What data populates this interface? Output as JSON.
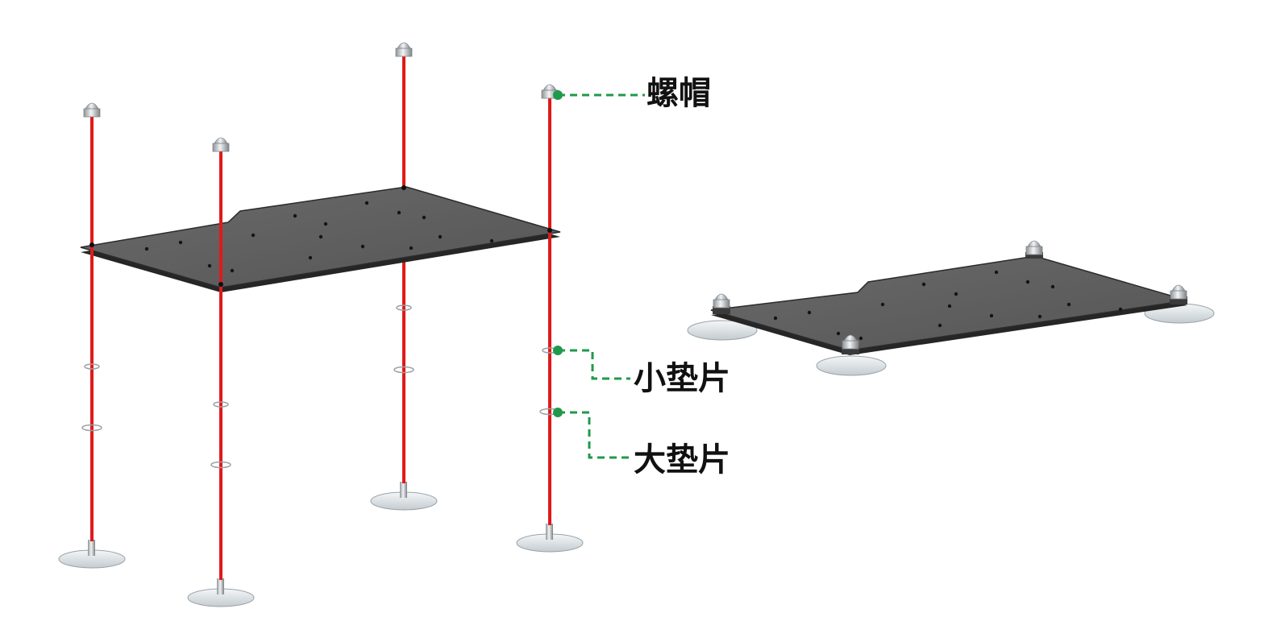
{
  "callouts": {
    "nut": "螺帽",
    "small_washer": "小垫片",
    "large_washer": "大垫片"
  },
  "colors": {
    "rod": "#e01a1a",
    "plate": "#5f5f5f",
    "plate_edge": "#262626",
    "leader": "#1f9a4a",
    "metal": "#c9cdd1",
    "suction_cup": "#e6ebee"
  },
  "icons": {
    "nut": "acorn-nut-icon",
    "washer": "washer-icon",
    "suction_cup": "suction-cup-icon"
  }
}
